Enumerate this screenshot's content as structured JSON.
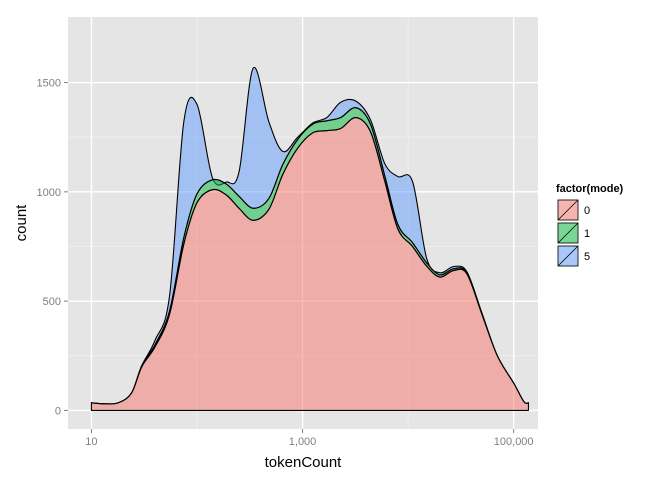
{
  "chart_data": {
    "type": "area",
    "stacked": true,
    "xlabel": "tokenCount",
    "ylabel": "count",
    "x_scale": "log10",
    "xlim": [
      6,
      170000
    ],
    "ylim": [
      -85,
      1800
    ],
    "x_ticks": [
      {
        "value": 10,
        "label": "10"
      },
      {
        "value": 1000,
        "label": "1,000"
      },
      {
        "value": 100000,
        "label": "100,000"
      }
    ],
    "y_ticks": [
      {
        "value": 0,
        "label": "0"
      },
      {
        "value": 500,
        "label": "500"
      },
      {
        "value": 1000,
        "label": "1000"
      },
      {
        "value": 1500,
        "label": "1500"
      }
    ],
    "grid": true,
    "legend": {
      "title": "factor(mode)",
      "position": "right"
    },
    "x": [
      10,
      13.5,
      18,
      24,
      30,
      40,
      55,
      75,
      100,
      140,
      190,
      250,
      340,
      480,
      650,
      900,
      1250,
      1700,
      2300,
      3200,
      4400,
      6000,
      8000,
      11000,
      15000,
      20000,
      27000,
      36000,
      50000,
      70000,
      100000,
      125000,
      138000
    ],
    "series": [
      {
        "name": "0",
        "color": "#f8766d",
        "values": [
          35,
          30,
          35,
          80,
          200,
          290,
          440,
          760,
          950,
          1010,
          985,
          925,
          870,
          920,
          1080,
          1200,
          1270,
          1280,
          1290,
          1340,
          1275,
          1050,
          830,
          750,
          660,
          610,
          640,
          625,
          440,
          250,
          125,
          40,
          35
        ]
      },
      {
        "name": "1",
        "color": "#00ba38",
        "values": [
          0,
          0,
          0,
          0,
          5,
          10,
          15,
          30,
          40,
          45,
          50,
          55,
          55,
          50,
          45,
          40,
          40,
          45,
          50,
          45,
          35,
          25,
          20,
          18,
          15,
          10,
          8,
          5,
          3,
          0,
          0,
          0,
          0
        ]
      },
      {
        "name": "5",
        "color": "#619cff",
        "values": [
          0,
          0,
          0,
          0,
          0,
          20,
          70,
          530,
          410,
          10,
          10,
          110,
          640,
          350,
          60,
          10,
          5,
          15,
          70,
          30,
          20,
          55,
          220,
          280,
          20,
          10,
          10,
          5,
          3,
          0,
          0,
          0,
          0
        ]
      }
    ]
  }
}
